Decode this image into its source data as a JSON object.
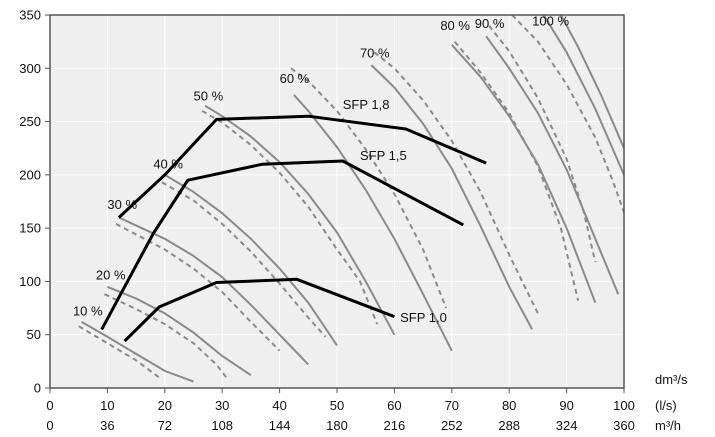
{
  "chart_data": {
    "type": "line",
    "title": "",
    "xlabel": "",
    "ylabel": "",
    "xlim": [
      0,
      100
    ],
    "ylim": [
      0,
      350
    ],
    "grid": true,
    "x_ticks": [
      0,
      10,
      20,
      30,
      40,
      50,
      60,
      70,
      80,
      90,
      100
    ],
    "y_ticks": [
      0,
      50,
      100,
      150,
      200,
      250,
      300,
      350
    ],
    "x2_ticks": [
      "0",
      "36",
      "72",
      "108",
      "144",
      "180",
      "216",
      "252",
      "288",
      "324",
      "360"
    ],
    "x_unit_labels": [
      "dm³/s",
      "(l/s)",
      "m³/h"
    ],
    "colors": {
      "solid": "#8a8a8a",
      "dashed": "#8a8a8a",
      "sfp": "#000000",
      "plot_bg": "#efefef",
      "grid": "#ffffff"
    },
    "fan_speed_curves": [
      {
        "label": "10 %",
        "style": "solid",
        "points": [
          [
            5.5,
            62
          ],
          [
            10,
            48
          ],
          [
            15,
            32
          ],
          [
            20,
            16
          ],
          [
            25,
            6
          ]
        ]
      },
      {
        "label": "10 %",
        "style": "dashed",
        "points": [
          [
            5,
            58
          ],
          [
            10,
            42
          ],
          [
            15,
            26
          ],
          [
            19.5,
            8
          ]
        ]
      },
      {
        "label": "20 %",
        "style": "solid",
        "points": [
          [
            10,
            95
          ],
          [
            15,
            84
          ],
          [
            20,
            70
          ],
          [
            25,
            52
          ],
          [
            30,
            30
          ],
          [
            35,
            12
          ]
        ]
      },
      {
        "label": "20 %",
        "style": "dashed",
        "points": [
          [
            9.5,
            88
          ],
          [
            15,
            74
          ],
          [
            20,
            60
          ],
          [
            25,
            42
          ],
          [
            29,
            22
          ],
          [
            31,
            8
          ]
        ]
      },
      {
        "label": "30 %",
        "style": "solid",
        "points": [
          [
            12,
            160
          ],
          [
            20,
            140
          ],
          [
            25,
            124
          ],
          [
            30,
            104
          ],
          [
            35,
            78
          ],
          [
            40,
            50
          ],
          [
            45,
            22
          ]
        ]
      },
      {
        "label": "30 %",
        "style": "dashed",
        "points": [
          [
            11.5,
            154
          ],
          [
            20,
            130
          ],
          [
            25,
            112
          ],
          [
            30,
            90
          ],
          [
            35,
            62
          ],
          [
            40,
            35
          ]
        ]
      },
      {
        "label": "40 %",
        "style": "solid",
        "points": [
          [
            20,
            200
          ],
          [
            25,
            184
          ],
          [
            30,
            164
          ],
          [
            35,
            140
          ],
          [
            40,
            112
          ],
          [
            45,
            80
          ],
          [
            50,
            40
          ]
        ]
      },
      {
        "label": "40 %",
        "style": "dashed",
        "points": [
          [
            19.5,
            193
          ],
          [
            25,
            176
          ],
          [
            30,
            154
          ],
          [
            35,
            128
          ],
          [
            40,
            98
          ],
          [
            45,
            66
          ],
          [
            48,
            48
          ]
        ]
      },
      {
        "label": "50 %",
        "style": "solid",
        "points": [
          [
            27,
            265
          ],
          [
            30,
            255
          ],
          [
            35,
            236
          ],
          [
            40,
            212
          ],
          [
            45,
            182
          ],
          [
            50,
            146
          ],
          [
            55,
            100
          ],
          [
            60,
            50
          ]
        ]
      },
      {
        "label": "50 %",
        "style": "dashed",
        "points": [
          [
            26.5,
            260
          ],
          [
            30,
            249
          ],
          [
            35,
            228
          ],
          [
            40,
            202
          ],
          [
            45,
            170
          ],
          [
            50,
            130
          ],
          [
            54,
            100
          ],
          [
            57,
            60
          ]
        ]
      },
      {
        "label": "60 %",
        "style": "solid",
        "points": [
          [
            42.5,
            275
          ],
          [
            45,
            260
          ],
          [
            50,
            226
          ],
          [
            55,
            186
          ],
          [
            60,
            140
          ],
          [
            65,
            88
          ],
          [
            70,
            35
          ]
        ]
      },
      {
        "label": "60 %",
        "style": "dashed",
        "points": [
          [
            42,
            300
          ],
          [
            45,
            288
          ],
          [
            50,
            260
          ],
          [
            55,
            224
          ],
          [
            60,
            182
          ],
          [
            65,
            130
          ],
          [
            69,
            75
          ]
        ]
      },
      {
        "label": "70 %",
        "style": "solid",
        "points": [
          [
            56,
            303
          ],
          [
            60,
            282
          ],
          [
            65,
            248
          ],
          [
            70,
            206
          ],
          [
            75,
            152
          ],
          [
            80,
            95
          ],
          [
            84,
            55
          ]
        ]
      },
      {
        "label": "70 %",
        "style": "dashed",
        "points": [
          [
            56.5,
            315
          ],
          [
            60,
            300
          ],
          [
            65,
            270
          ],
          [
            70,
            232
          ],
          [
            75,
            184
          ],
          [
            80,
            125
          ],
          [
            85,
            70
          ]
        ]
      },
      {
        "label": "80 %",
        "style": "solid",
        "points": [
          [
            70,
            322
          ],
          [
            75,
            292
          ],
          [
            80,
            255
          ],
          [
            85,
            210
          ],
          [
            90,
            150
          ],
          [
            95,
            80
          ]
        ]
      },
      {
        "label": "80 %",
        "style": "dashed",
        "points": [
          [
            70.5,
            325
          ],
          [
            75,
            296
          ],
          [
            80,
            258
          ],
          [
            85,
            208
          ],
          [
            89,
            150
          ],
          [
            92,
            82
          ]
        ]
      },
      {
        "label": "90 %",
        "style": "solid",
        "points": [
          [
            76,
            330
          ],
          [
            80,
            300
          ],
          [
            85,
            258
          ],
          [
            90,
            205
          ],
          [
            95,
            140
          ],
          [
            99,
            88
          ]
        ]
      },
      {
        "label": "90 %",
        "style": "dashed",
        "points": [
          [
            76.5,
            340
          ],
          [
            80,
            316
          ],
          [
            85,
            272
          ],
          [
            90,
            215
          ],
          [
            93,
            165
          ],
          [
            95,
            118
          ]
        ]
      },
      {
        "label": "100 %",
        "style": "solid",
        "points": [
          [
            86,
            350
          ],
          [
            90,
            315
          ],
          [
            95,
            262
          ],
          [
            100,
            200
          ],
          [
            105,
            130
          ],
          [
            110,
            95
          ]
        ]
      },
      {
        "label": "100 %",
        "style": "dashed",
        "points": [
          [
            80.5,
            350
          ],
          [
            85,
            325
          ],
          [
            90,
            285
          ],
          [
            95,
            235
          ],
          [
            98,
            195
          ],
          [
            101,
            150
          ]
        ]
      },
      {
        "label": "100 %",
        "style": "solid",
        "points": [
          [
            89,
            350
          ],
          [
            92,
            320
          ],
          [
            96,
            275
          ],
          [
            100,
            225
          ],
          [
            104,
            170
          ],
          [
            108,
            120
          ]
        ]
      }
    ],
    "sfp_curves": [
      {
        "label": "SFP 1,8",
        "points": [
          [
            12,
            160
          ],
          [
            20,
            200
          ],
          [
            29,
            252
          ],
          [
            45,
            255
          ],
          [
            62,
            243
          ],
          [
            76,
            211
          ]
        ]
      },
      {
        "label": "SFP 1,5",
        "points": [
          [
            9,
            55
          ],
          [
            18,
            145
          ],
          [
            24,
            195
          ],
          [
            37,
            210
          ],
          [
            51,
            213
          ],
          [
            72,
            153
          ]
        ]
      },
      {
        "label": "SFP 1,0",
        "points": [
          [
            13,
            44
          ],
          [
            19,
            76
          ],
          [
            29,
            99
          ],
          [
            43,
            102
          ],
          [
            60,
            67
          ]
        ]
      }
    ],
    "annotations": [
      {
        "text": "10 %",
        "x": 4,
        "y": 68
      },
      {
        "text": "20 %",
        "x": 8,
        "y": 102
      },
      {
        "text": "30 %",
        "x": 10,
        "y": 168
      },
      {
        "text": "40 %",
        "x": 18,
        "y": 206
      },
      {
        "text": "50 %",
        "x": 25,
        "y": 270
      },
      {
        "text": "60 %",
        "x": 40,
        "y": 286
      },
      {
        "text": "70 %",
        "x": 54,
        "y": 310
      },
      {
        "text": "80 %",
        "x": 68,
        "y": 336
      },
      {
        "text": "90 %",
        "x": 74,
        "y": 338
      },
      {
        "text": "100 %",
        "x": 84,
        "y": 340
      },
      {
        "text": "SFP 1,8",
        "x": 51,
        "y": 262
      },
      {
        "text": "SFP 1,5",
        "x": 54,
        "y": 214
      },
      {
        "text": "SFP 1,0",
        "x": 61,
        "y": 62
      }
    ]
  }
}
